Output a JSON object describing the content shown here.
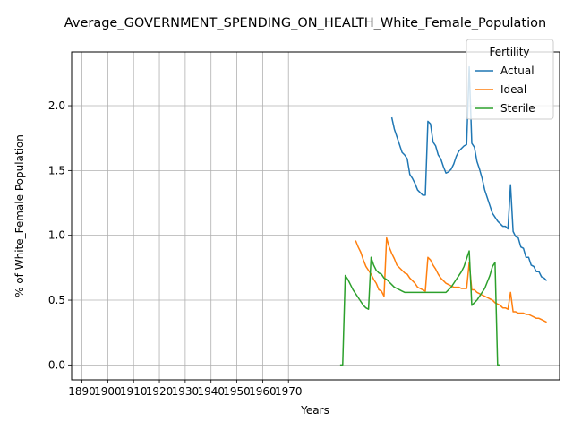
{
  "chart_data": {
    "type": "line",
    "title": "Average_GOVERNMENT_SPENDING_ON_HEALTH_White_Female_Population",
    "xlabel": "Years",
    "ylabel": "% of White_Female Population",
    "xlim": [
      1886,
      2075
    ],
    "ylim": [
      -0.115,
      2.415
    ],
    "xticks": [
      1890,
      1900,
      1910,
      1920,
      1930,
      1940,
      1950,
      1960,
      1970
    ],
    "yticks": [
      0.0,
      0.5,
      1.0,
      1.5,
      2.0
    ],
    "ytick_labels": [
      "0.0",
      "0.5",
      "1.0",
      "1.5",
      "2.0"
    ],
    "grid": true,
    "legend": {
      "title": "Fertility",
      "placement": "top-right"
    },
    "series": [
      {
        "name": "Actual",
        "color": "#1f77b4",
        "x": [
          2010,
          2011,
          2012,
          2013,
          2014,
          2015,
          2016,
          2017,
          2018,
          2019,
          2020,
          2021,
          2022,
          2023,
          2024,
          2025,
          2026,
          2027,
          2028,
          2029,
          2030,
          2031,
          2032,
          2033,
          2034,
          2035,
          2036,
          2037,
          2038,
          2039,
          2040,
          2041,
          2042,
          2043,
          2044,
          2045,
          2046,
          2047,
          2048,
          2049,
          2050,
          2051,
          2052,
          2053,
          2054,
          2055,
          2056,
          2057,
          2058,
          2059,
          2060,
          2061,
          2062,
          2063,
          2064,
          2065,
          2066,
          2067,
          2068,
          2069,
          2070
        ],
        "values": [
          1.91,
          1.82,
          1.76,
          1.7,
          1.64,
          1.62,
          1.59,
          1.47,
          1.44,
          1.4,
          1.35,
          1.33,
          1.31,
          1.31,
          1.88,
          1.86,
          1.72,
          1.69,
          1.62,
          1.59,
          1.53,
          1.48,
          1.49,
          1.51,
          1.55,
          1.61,
          1.65,
          1.67,
          1.69,
          1.7,
          2.3,
          1.71,
          1.68,
          1.57,
          1.51,
          1.44,
          1.35,
          1.29,
          1.23,
          1.17,
          1.14,
          1.11,
          1.09,
          1.07,
          1.07,
          1.05,
          1.39,
          1.03,
          0.99,
          0.98,
          0.91,
          0.9,
          0.83,
          0.83,
          0.77,
          0.76,
          0.72,
          0.72,
          0.68,
          0.67,
          0.65
        ]
      },
      {
        "name": "Ideal",
        "color": "#ff7f0e",
        "x": [
          1996,
          1997,
          1998,
          1999,
          2000,
          2001,
          2002,
          2003,
          2004,
          2005,
          2006,
          2007,
          2008,
          2009,
          2010,
          2011,
          2012,
          2013,
          2014,
          2015,
          2016,
          2017,
          2018,
          2019,
          2020,
          2021,
          2022,
          2023,
          2024,
          2025,
          2026,
          2027,
          2028,
          2029,
          2030,
          2031,
          2032,
          2033,
          2034,
          2035,
          2036,
          2037,
          2038,
          2039,
          2040,
          2041,
          2042,
          2043,
          2044,
          2045,
          2046,
          2047,
          2048,
          2049,
          2050,
          2051,
          2052,
          2053,
          2054,
          2055,
          2056,
          2057,
          2058,
          2059,
          2060,
          2061,
          2062,
          2063,
          2064,
          2065,
          2066,
          2067,
          2068,
          2069,
          2070
        ],
        "values": [
          0.96,
          0.91,
          0.87,
          0.81,
          0.76,
          0.73,
          0.7,
          0.66,
          0.63,
          0.58,
          0.57,
          0.53,
          0.98,
          0.91,
          0.86,
          0.82,
          0.77,
          0.75,
          0.73,
          0.71,
          0.7,
          0.67,
          0.65,
          0.63,
          0.6,
          0.59,
          0.58,
          0.57,
          0.83,
          0.81,
          0.77,
          0.74,
          0.7,
          0.67,
          0.65,
          0.63,
          0.62,
          0.61,
          0.6,
          0.6,
          0.6,
          0.59,
          0.59,
          0.59,
          0.79,
          0.58,
          0.58,
          0.56,
          0.55,
          0.54,
          0.53,
          0.52,
          0.51,
          0.5,
          0.48,
          0.47,
          0.46,
          0.44,
          0.44,
          0.43,
          0.56,
          0.41,
          0.41,
          0.4,
          0.4,
          0.4,
          0.39,
          0.39,
          0.38,
          0.37,
          0.36,
          0.36,
          0.35,
          0.34,
          0.33
        ]
      },
      {
        "name": "Sterile",
        "color": "#2ca02c",
        "x": [
          1990,
          1991,
          1992,
          1993,
          1994,
          1995,
          1996,
          1997,
          1998,
          1999,
          2000,
          2001,
          2002,
          2003,
          2004,
          2005,
          2006,
          2007,
          2008,
          2009,
          2010,
          2011,
          2012,
          2013,
          2014,
          2015,
          2016,
          2017,
          2018,
          2019,
          2020,
          2021,
          2022,
          2023,
          2024,
          2025,
          2026,
          2027,
          2028,
          2029,
          2030,
          2031,
          2032,
          2033,
          2034,
          2035,
          2036,
          2037,
          2038,
          2039,
          2040,
          2041,
          2042,
          2043,
          2044,
          2045,
          2046,
          2047,
          2048,
          2049,
          2050,
          2051,
          2052
        ],
        "values": [
          0.0,
          0.0,
          0.69,
          0.66,
          0.62,
          0.58,
          0.55,
          0.52,
          0.49,
          0.46,
          0.44,
          0.43,
          0.83,
          0.77,
          0.73,
          0.71,
          0.7,
          0.67,
          0.66,
          0.64,
          0.62,
          0.6,
          0.59,
          0.58,
          0.57,
          0.56,
          0.56,
          0.56,
          0.56,
          0.56,
          0.56,
          0.56,
          0.56,
          0.56,
          0.56,
          0.56,
          0.56,
          0.56,
          0.56,
          0.56,
          0.56,
          0.56,
          0.58,
          0.6,
          0.63,
          0.66,
          0.69,
          0.72,
          0.76,
          0.82,
          0.88,
          0.46,
          0.48,
          0.5,
          0.53,
          0.56,
          0.59,
          0.64,
          0.69,
          0.76,
          0.79,
          0.0,
          0.0
        ]
      }
    ]
  }
}
